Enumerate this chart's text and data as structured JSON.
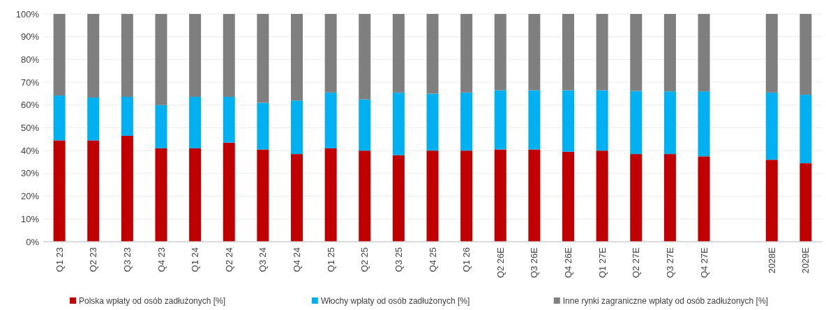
{
  "chart_data": {
    "type": "bar",
    "stacked": true,
    "categories": [
      "Q1 23",
      "Q2 23",
      "Q3 23",
      "Q4 23",
      "Q1 24",
      "Q2 24",
      "Q3 24",
      "Q4 24",
      "Q1 25",
      "Q2 25",
      "Q3 25",
      "Q4 25",
      "Q1 26",
      "Q2 26E",
      "Q3 26E",
      "Q4 26E",
      "Q1 27E",
      "Q2 27E",
      "Q3 27E",
      "Q4 27E",
      null,
      "2028E",
      "2029E"
    ],
    "series": [
      {
        "name": "Polska wpłaty od osób zadłużonych [%]",
        "color": "#c00000",
        "values": [
          44.5,
          44.5,
          46.5,
          41,
          41,
          43.5,
          40.5,
          38.5,
          41,
          40,
          38,
          40,
          40,
          40.5,
          40.5,
          39.5,
          40,
          38.5,
          38.5,
          37.5,
          null,
          36,
          34.5
        ]
      },
      {
        "name": "Włochy wpłaty od osób zadłużonych [%]",
        "color": "#00b0f0",
        "values": [
          19.7,
          18.8,
          17.1,
          19,
          22.6,
          20.1,
          20.5,
          23.5,
          24.5,
          22.5,
          27.5,
          25,
          25.5,
          26,
          26,
          27,
          26.5,
          27.7,
          27.5,
          28.5,
          null,
          29.5,
          30
        ]
      },
      {
        "name": "Inne rynki zagraniczne wpłaty od osób zadłużonych [%]",
        "color": "#7f7f7f",
        "values": [
          35.8,
          36.7,
          36.4,
          40,
          36.4,
          36.4,
          39,
          38,
          34.5,
          37.5,
          34.5,
          35,
          34.5,
          33.5,
          33.5,
          33.5,
          33.5,
          33.8,
          34,
          34,
          null,
          34.5,
          35.5
        ]
      }
    ],
    "ylim": [
      0,
      100
    ],
    "yticks": [
      {
        "value": 0,
        "label": "0%"
      },
      {
        "value": 10,
        "label": "10%"
      },
      {
        "value": 20,
        "label": "20%"
      },
      {
        "value": 30,
        "label": "30%"
      },
      {
        "value": 40,
        "label": "40%"
      },
      {
        "value": 50,
        "label": "50%"
      },
      {
        "value": 60,
        "label": "60%"
      },
      {
        "value": 70,
        "label": "70%"
      },
      {
        "value": 80,
        "label": "80%"
      },
      {
        "value": 90,
        "label": "90%"
      },
      {
        "value": 100,
        "label": "100%"
      }
    ],
    "grid": "y",
    "legend": "bottom"
  }
}
